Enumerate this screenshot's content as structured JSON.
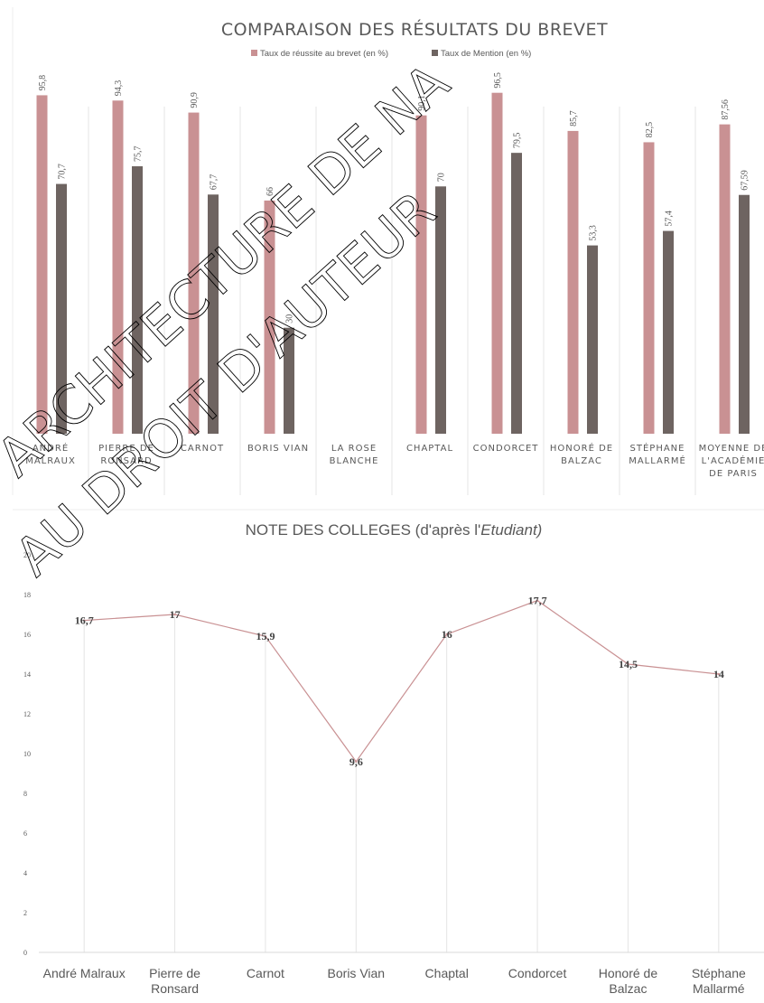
{
  "chart_data": [
    {
      "type": "bar",
      "title": "COMPARAISON DES RÉSULTATS DU BREVET",
      "categories": [
        "ANDRÉ MALRAUX",
        "PIERRE DE RONSARD",
        "CARNOT",
        "BORIS VIAN",
        "LA ROSE BLANCHE",
        "CHAPTAL",
        "CONDORCET",
        "HONORÉ DE BALZAC",
        "STÉPHANE MALLARMÉ",
        "MOYENNE DE L'ACADÉMIE DE PARIS"
      ],
      "series": [
        {
          "name": "Taux de réussite au brevet (en %)",
          "color": "#c99193",
          "values": [
            95.8,
            94.3,
            90.9,
            66,
            null,
            90.1,
            96.5,
            85.7,
            82.5,
            87.56
          ],
          "labels": [
            "95,8",
            "94,3",
            "90,9",
            "66",
            "",
            "90,1",
            "96,5",
            "85,7",
            "82,5",
            "87,56"
          ]
        },
        {
          "name": "Taux de Mention (en %)",
          "color": "#6e6461",
          "values": [
            70.7,
            75.7,
            67.7,
            30,
            null,
            70,
            79.5,
            53.3,
            57.4,
            67.59
          ],
          "labels": [
            "70,7",
            "75,7",
            "67,7",
            "30",
            "",
            "70",
            "79,5",
            "53,3",
            "57,4",
            "67,59"
          ]
        }
      ],
      "ylim": [
        0,
        100
      ],
      "legend": "top-center",
      "grid": "vertical category dividers",
      "xlabel": "",
      "ylabel": ""
    },
    {
      "type": "line",
      "title": "NOTE DES COLLEGES (d'après l'",
      "title_italic": "Etudiant)",
      "categories": [
        "André Malraux",
        "Pierre de Ronsard",
        "Carnot",
        "Boris Vian",
        "Chaptal",
        "Condorcet",
        "Honoré de Balzac",
        "Stéphane Mallarmé"
      ],
      "series": [
        {
          "color": "#c99193",
          "values": [
            16.7,
            17,
            15.9,
            9.6,
            16,
            17.7,
            14.5,
            14
          ],
          "labels": [
            "16,7",
            "17",
            "15,9",
            "9,6",
            "16",
            "17,7",
            "14,5",
            "14"
          ]
        }
      ],
      "ylim": [
        0,
        20
      ],
      "yticks": [
        "0",
        "2",
        "4",
        "6",
        "8",
        "10",
        "12",
        "14",
        "16",
        "18",
        "20"
      ],
      "grid": "vertical drop lines",
      "xlabel": "",
      "ylabel": ""
    }
  ],
  "watermark": [
    "ARCHITECTURE DE NA",
    "AU DROIT D'AUTEUR"
  ]
}
